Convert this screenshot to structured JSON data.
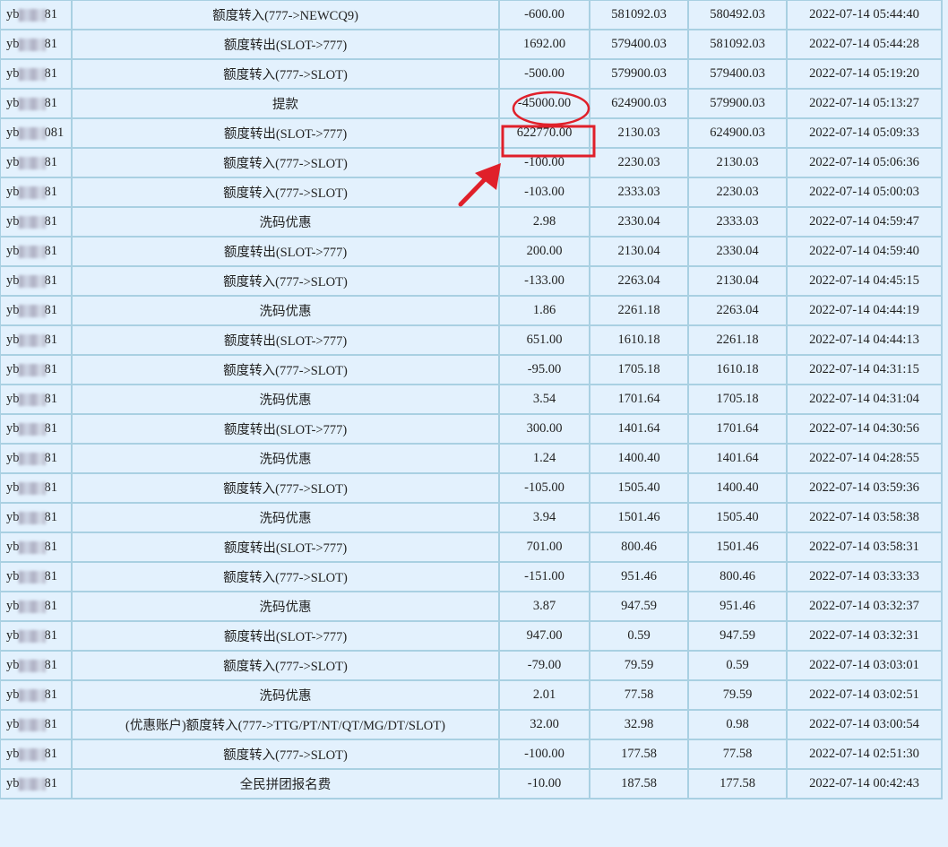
{
  "annotation_color": "#e0202a",
  "rows": [
    {
      "user_prefix": "yb",
      "user_suffix": "81",
      "type": "额度转入(777->NEWCQ9)",
      "amount": "-600.00",
      "before": "581092.03",
      "after": "580492.03",
      "time": "2022-07-14 05:44:40"
    },
    {
      "user_prefix": "yb",
      "user_suffix": "81",
      "type": "额度转出(SLOT->777)",
      "amount": "1692.00",
      "before": "579400.03",
      "after": "581092.03",
      "time": "2022-07-14 05:44:28"
    },
    {
      "user_prefix": "yb",
      "user_suffix": "81",
      "type": "额度转入(777->SLOT)",
      "amount": "-500.00",
      "before": "579900.03",
      "after": "579400.03",
      "time": "2022-07-14 05:19:20"
    },
    {
      "user_prefix": "yb",
      "user_suffix": "81",
      "type": "提款",
      "amount": "-45000.00",
      "before": "624900.03",
      "after": "579900.03",
      "time": "2022-07-14 05:13:27"
    },
    {
      "user_prefix": "yb",
      "user_suffix": "081",
      "type": "额度转出(SLOT->777)",
      "amount": "622770.00",
      "before": "2130.03",
      "after": "624900.03",
      "time": "2022-07-14 05:09:33"
    },
    {
      "user_prefix": "yb",
      "user_suffix": "81",
      "type": "额度转入(777->SLOT)",
      "amount": "-100.00",
      "before": "2230.03",
      "after": "2130.03",
      "time": "2022-07-14 05:06:36"
    },
    {
      "user_prefix": "yb",
      "user_suffix": "81",
      "type": "额度转入(777->SLOT)",
      "amount": "-103.00",
      "before": "2333.03",
      "after": "2230.03",
      "time": "2022-07-14 05:00:03"
    },
    {
      "user_prefix": "yb",
      "user_suffix": "81",
      "type": "洗码优惠",
      "amount": "2.98",
      "before": "2330.04",
      "after": "2333.03",
      "time": "2022-07-14 04:59:47"
    },
    {
      "user_prefix": "yb",
      "user_suffix": "81",
      "type": "额度转出(SLOT->777)",
      "amount": "200.00",
      "before": "2130.04",
      "after": "2330.04",
      "time": "2022-07-14 04:59:40"
    },
    {
      "user_prefix": "yb",
      "user_suffix": "81",
      "type": "额度转入(777->SLOT)",
      "amount": "-133.00",
      "before": "2263.04",
      "after": "2130.04",
      "time": "2022-07-14 04:45:15"
    },
    {
      "user_prefix": "yb",
      "user_suffix": "81",
      "type": "洗码优惠",
      "amount": "1.86",
      "before": "2261.18",
      "after": "2263.04",
      "time": "2022-07-14 04:44:19"
    },
    {
      "user_prefix": "yb",
      "user_suffix": "81",
      "type": "额度转出(SLOT->777)",
      "amount": "651.00",
      "before": "1610.18",
      "after": "2261.18",
      "time": "2022-07-14 04:44:13"
    },
    {
      "user_prefix": "yb",
      "user_suffix": "81",
      "type": "额度转入(777->SLOT)",
      "amount": "-95.00",
      "before": "1705.18",
      "after": "1610.18",
      "time": "2022-07-14 04:31:15"
    },
    {
      "user_prefix": "yb",
      "user_suffix": "81",
      "type": "洗码优惠",
      "amount": "3.54",
      "before": "1701.64",
      "after": "1705.18",
      "time": "2022-07-14 04:31:04"
    },
    {
      "user_prefix": "yb",
      "user_suffix": "81",
      "type": "额度转出(SLOT->777)",
      "amount": "300.00",
      "before": "1401.64",
      "after": "1701.64",
      "time": "2022-07-14 04:30:56"
    },
    {
      "user_prefix": "yb",
      "user_suffix": "81",
      "type": "洗码优惠",
      "amount": "1.24",
      "before": "1400.40",
      "after": "1401.64",
      "time": "2022-07-14 04:28:55"
    },
    {
      "user_prefix": "yb",
      "user_suffix": "81",
      "type": "额度转入(777->SLOT)",
      "amount": "-105.00",
      "before": "1505.40",
      "after": "1400.40",
      "time": "2022-07-14 03:59:36"
    },
    {
      "user_prefix": "yb",
      "user_suffix": "81",
      "type": "洗码优惠",
      "amount": "3.94",
      "before": "1501.46",
      "after": "1505.40",
      "time": "2022-07-14 03:58:38"
    },
    {
      "user_prefix": "yb",
      "user_suffix": "81",
      "type": "额度转出(SLOT->777)",
      "amount": "701.00",
      "before": "800.46",
      "after": "1501.46",
      "time": "2022-07-14 03:58:31"
    },
    {
      "user_prefix": "yb",
      "user_suffix": "81",
      "type": "额度转入(777->SLOT)",
      "amount": "-151.00",
      "before": "951.46",
      "after": "800.46",
      "time": "2022-07-14 03:33:33"
    },
    {
      "user_prefix": "yb",
      "user_suffix": "81",
      "type": "洗码优惠",
      "amount": "3.87",
      "before": "947.59",
      "after": "951.46",
      "time": "2022-07-14 03:32:37"
    },
    {
      "user_prefix": "yb",
      "user_suffix": "81",
      "type": "额度转出(SLOT->777)",
      "amount": "947.00",
      "before": "0.59",
      "after": "947.59",
      "time": "2022-07-14 03:32:31"
    },
    {
      "user_prefix": "yb",
      "user_suffix": "81",
      "type": "额度转入(777->SLOT)",
      "amount": "-79.00",
      "before": "79.59",
      "after": "0.59",
      "time": "2022-07-14 03:03:01"
    },
    {
      "user_prefix": "yb",
      "user_suffix": "81",
      "type": "洗码优惠",
      "amount": "2.01",
      "before": "77.58",
      "after": "79.59",
      "time": "2022-07-14 03:02:51"
    },
    {
      "user_prefix": "yb",
      "user_suffix": "81",
      "type": "(优惠账户)额度转入(777->TTG/PT/NT/QT/MG/DT/SLOT)",
      "amount": "32.00",
      "before": "32.98",
      "after": "0.98",
      "time": "2022-07-14 03:00:54"
    },
    {
      "user_prefix": "yb",
      "user_suffix": "81",
      "type": "额度转入(777->SLOT)",
      "amount": "-100.00",
      "before": "177.58",
      "after": "77.58",
      "time": "2022-07-14 02:51:30"
    },
    {
      "user_prefix": "yb",
      "user_suffix": "81",
      "type": "全民拼团报名费",
      "amount": "-10.00",
      "before": "187.58",
      "after": "177.58",
      "time": "2022-07-14 00:42:43"
    }
  ]
}
